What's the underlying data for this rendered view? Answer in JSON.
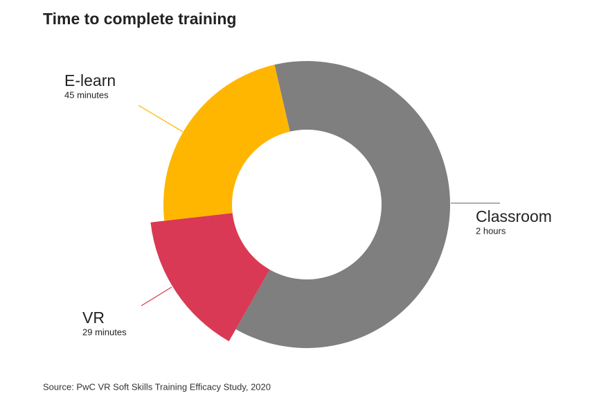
{
  "chart_data": {
    "type": "donut",
    "title": "Time to complete training",
    "categories": [
      "Classroom",
      "VR",
      "E-learn"
    ],
    "values": [
      120,
      29,
      45
    ],
    "value_labels": [
      "2 hours",
      "29 minutes",
      "45 minutes"
    ],
    "colors": [
      "#7f7f7f",
      "#d93954",
      "#ffb600"
    ],
    "source": "Source: PwC VR Soft Skills Training Efficacy Study, 2020"
  }
}
